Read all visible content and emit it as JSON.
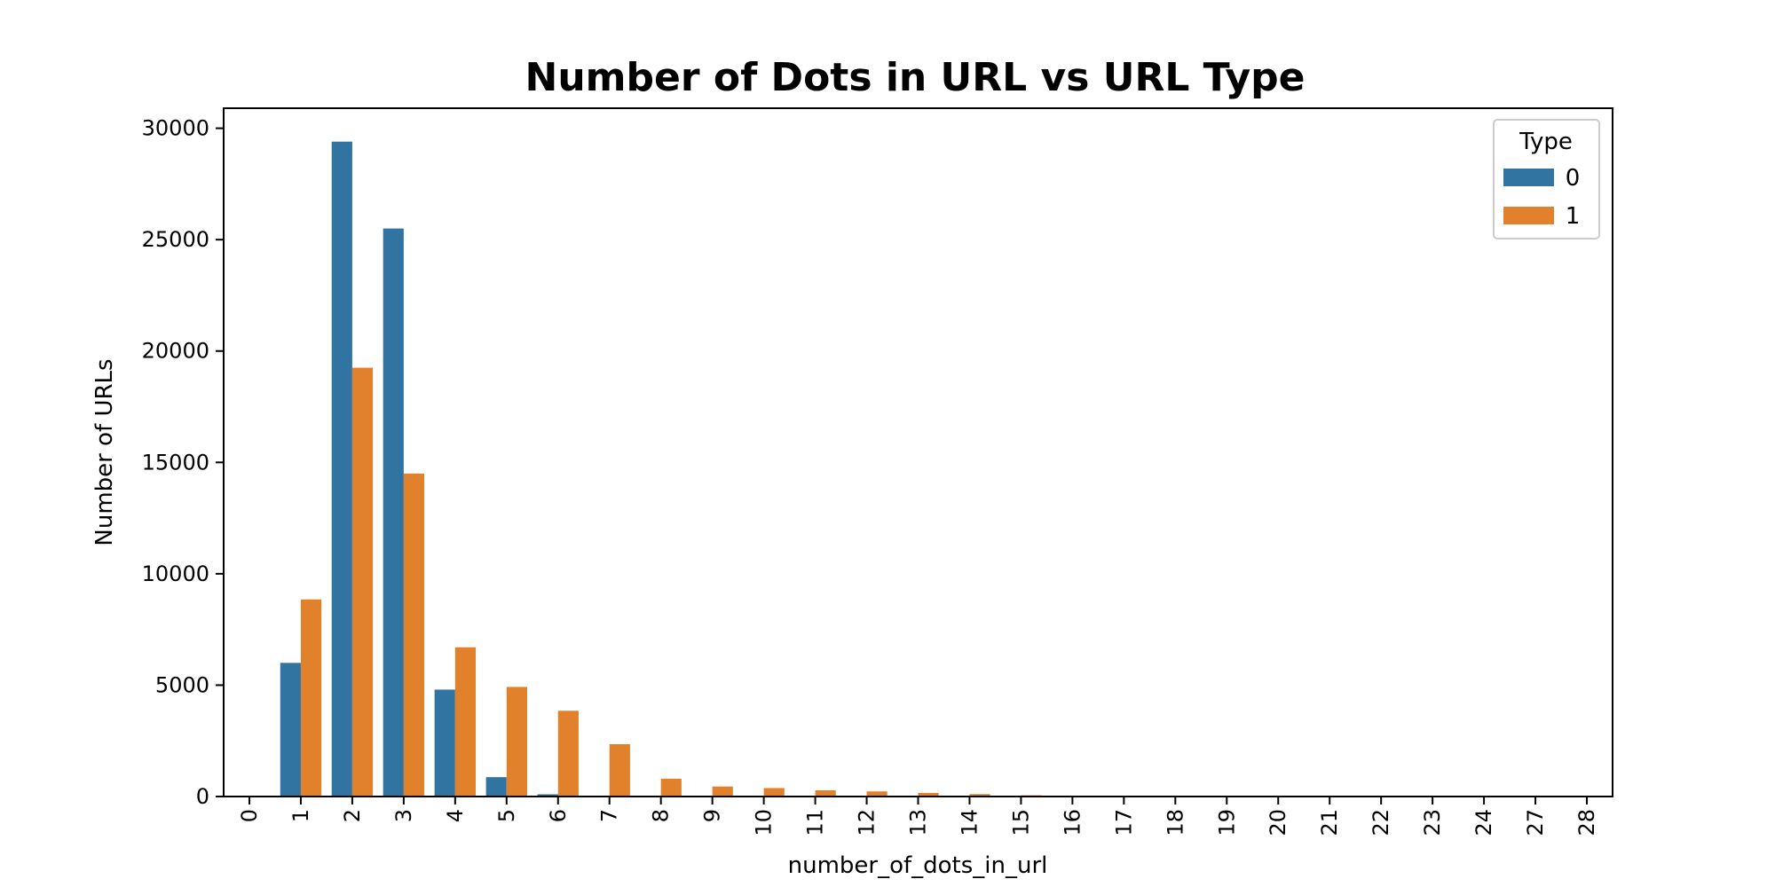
{
  "chart_data": {
    "type": "bar",
    "title": "Number of Dots in URL vs URL Type",
    "xlabel": "number_of_dots_in_url",
    "ylabel": "Number of URLs",
    "categories": [
      "0",
      "1",
      "2",
      "3",
      "4",
      "5",
      "6",
      "7",
      "8",
      "9",
      "10",
      "11",
      "12",
      "13",
      "14",
      "15",
      "16",
      "17",
      "18",
      "19",
      "20",
      "21",
      "22",
      "23",
      "24",
      "27",
      "28"
    ],
    "series": [
      {
        "name": "0",
        "color": "#3274a1",
        "values": [
          0,
          6000,
          29400,
          25500,
          4800,
          870,
          100,
          0,
          0,
          0,
          0,
          0,
          0,
          0,
          0,
          0,
          0,
          0,
          0,
          0,
          0,
          0,
          0,
          0,
          0,
          0,
          0
        ]
      },
      {
        "name": "1",
        "color": "#e1812c",
        "values": [
          0,
          8850,
          19250,
          14500,
          6700,
          4920,
          3850,
          2350,
          800,
          450,
          380,
          280,
          230,
          160,
          110,
          55,
          30,
          20,
          15,
          10,
          8,
          5,
          5,
          3,
          3,
          2,
          2
        ]
      }
    ],
    "yticks": [
      0,
      5000,
      10000,
      15000,
      20000,
      25000,
      30000
    ],
    "ylim": [
      0,
      30900
    ],
    "legend": {
      "title": "Type",
      "placement": "top-right"
    },
    "grid": false
  }
}
